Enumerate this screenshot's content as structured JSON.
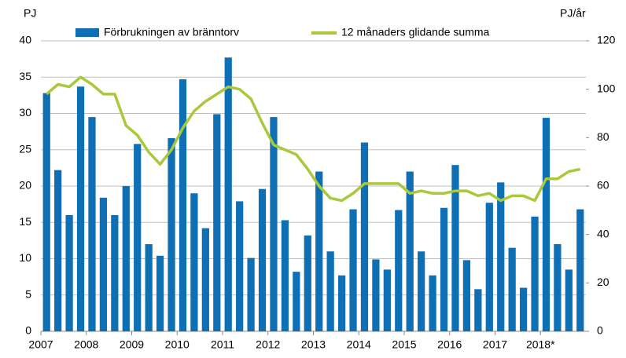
{
  "chart_data": {
    "type": "bar_line",
    "y_label": "PJ",
    "y2_label": "PJ/år",
    "categories": [
      "2007",
      null,
      null,
      null,
      "2008",
      null,
      null,
      null,
      "2009",
      null,
      null,
      null,
      "2010",
      null,
      null,
      null,
      "2011",
      null,
      null,
      null,
      "2012",
      null,
      null,
      null,
      "2013",
      null,
      null,
      null,
      "2014",
      null,
      null,
      null,
      "2015",
      null,
      null,
      null,
      "2016",
      null,
      null,
      null,
      "2017",
      null,
      null,
      null,
      "2018*",
      null,
      null,
      null
    ],
    "series": [
      {
        "name": "Förbrukningen av bränntorv",
        "type": "bar",
        "color": "#0f6fb5",
        "values": [
          32.8,
          22.2,
          16,
          33.7,
          29.5,
          18.4,
          16,
          20,
          25.8,
          12,
          10.4,
          26.6,
          34.7,
          19,
          14.2,
          29.9,
          37.7,
          17.9,
          10.1,
          19.6,
          29.5,
          15.3,
          8.2,
          13.2,
          22,
          11,
          7.7,
          16.8,
          26,
          9.9,
          8.5,
          16.7,
          22,
          11,
          7.7,
          17,
          22.9,
          9.8,
          5.8,
          17.7,
          20.5,
          11.5,
          6,
          15.8,
          29.4,
          12,
          8.5,
          16.8
        ]
      },
      {
        "name": "12 månaders glidande summa",
        "type": "line",
        "axis": "y2",
        "color": "#aac83c",
        "values": [
          98,
          102,
          101,
          105,
          102,
          98,
          98,
          85,
          81,
          74,
          69,
          75,
          84,
          91,
          95,
          98,
          101,
          100,
          96,
          86,
          77,
          75,
          73,
          67,
          60,
          55,
          54,
          57,
          61,
          61,
          61,
          61,
          57,
          58,
          57,
          57,
          58,
          58,
          56,
          57,
          54,
          56,
          56,
          54,
          63,
          63,
          66,
          67
        ]
      }
    ],
    "ylim": [
      0,
      40
    ],
    "yticks": [
      0,
      5,
      10,
      15,
      20,
      25,
      30,
      35,
      40
    ],
    "y2lim": [
      0,
      120
    ],
    "y2ticks": [
      0,
      20,
      40,
      60,
      80,
      100,
      120
    ],
    "grid": true
  }
}
